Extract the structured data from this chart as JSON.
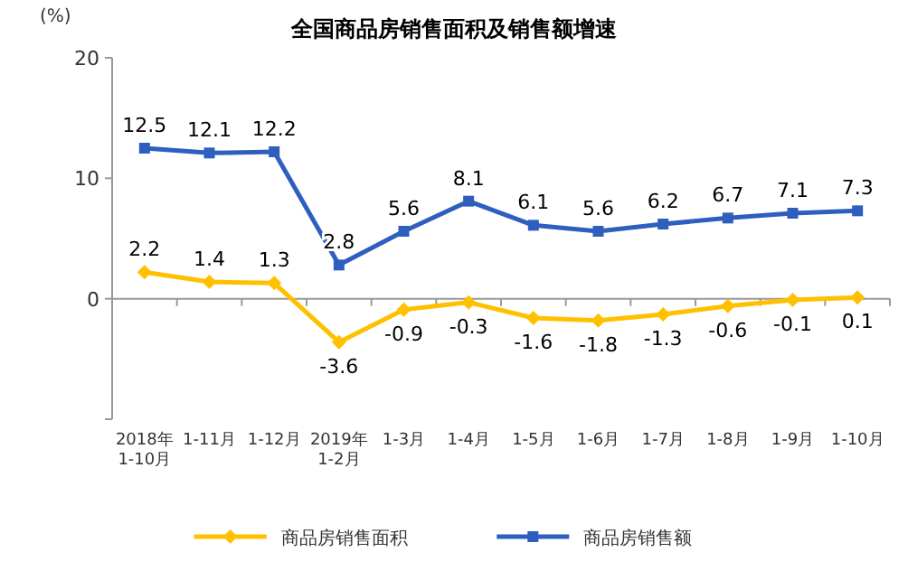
{
  "chart_data": {
    "type": "line",
    "title": "全国商品房销售面积及销售额增速",
    "ylabel": "(%)",
    "categories": [
      "2018年\n1-10月",
      "1-11月",
      "1-12月",
      "2019年\n1-2月",
      "1-3月",
      "1-4月",
      "1-5月",
      "1-6月",
      "1-7月",
      "1-8月",
      "1-9月",
      "1-10月"
    ],
    "series": [
      {
        "name": "商品房销售面积",
        "color": "#ffc000",
        "marker": "diamond",
        "values": [
          2.2,
          1.4,
          1.3,
          -3.6,
          -0.9,
          -0.3,
          -1.6,
          -1.8,
          -1.3,
          -0.6,
          -0.1,
          0.1
        ]
      },
      {
        "name": "商品房销售额",
        "color": "#2e5fbf",
        "marker": "square",
        "values": [
          12.5,
          12.1,
          12.2,
          2.8,
          5.6,
          8.1,
          6.1,
          5.6,
          6.2,
          6.7,
          7.1,
          7.3
        ]
      }
    ],
    "ylim": [
      -10,
      20
    ],
    "yticks": [
      {
        "value": -10,
        "label": null
      },
      0,
      10,
      20
    ],
    "data_labels": true,
    "legend": "bottom"
  }
}
